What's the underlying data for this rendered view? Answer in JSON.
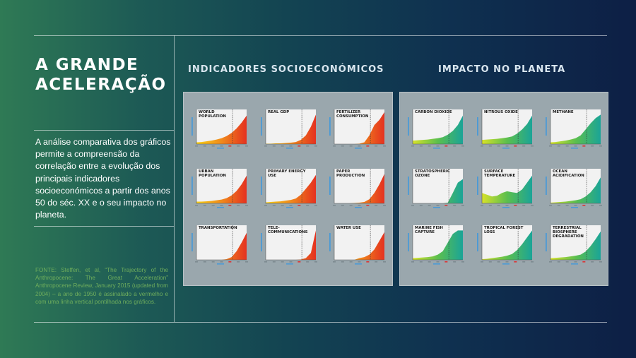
{
  "title": "A GRANDE ACELERAÇÃO",
  "description": "A análise comparativa dos gráficos permite a compreensão da correlação entre a evolução dos principais indicadores socioeconómicos a partir dos anos 50 do séc. XX e o seu impacto no planeta.",
  "source": "FONTE: Steffen, et al, “The Trajectory of the Anthropocene: The Great Acceleration” Anthropocene Review, January 2015 (updated from 2004) – a ano de 1950 é assinalado a vermelho e com uma linha vertical pontilhada nos gráficos.",
  "sections": {
    "socio": "INDICADORES SOCIOECONÓMICOS",
    "planet": "IMPACTO NO PLANETA"
  },
  "colors": {
    "socio_gradient": [
      "#f7d117",
      "#f08a1c",
      "#e5311f"
    ],
    "planet_gradient": [
      "#d7e22a",
      "#5cbf4e",
      "#1aa497"
    ]
  },
  "socio_charts": [
    {
      "label": "WORLD POPULATION",
      "trend": [
        0.05,
        0.06,
        0.08,
        0.1,
        0.13,
        0.17,
        0.23,
        0.32,
        0.45,
        0.62,
        0.82
      ]
    },
    {
      "label": "REAL GDP",
      "trend": [
        0.01,
        0.01,
        0.02,
        0.02,
        0.03,
        0.04,
        0.06,
        0.12,
        0.25,
        0.5,
        0.85
      ]
    },
    {
      "label": "FERTILIZER CONSUMPTION",
      "trend": [
        0,
        0,
        0,
        0,
        0,
        0.01,
        0.05,
        0.25,
        0.55,
        0.7,
        0.92
      ]
    },
    {
      "label": "URBAN POPULATION",
      "trend": [
        0.05,
        0.05,
        0.06,
        0.07,
        0.09,
        0.11,
        0.15,
        0.23,
        0.36,
        0.55,
        0.8
      ]
    },
    {
      "label": "PRIMARY ENERGY USE",
      "trend": [
        0.03,
        0.04,
        0.05,
        0.06,
        0.08,
        0.1,
        0.14,
        0.25,
        0.42,
        0.6,
        0.82
      ]
    },
    {
      "label": "PAPER PRODUCTION",
      "trend": [
        0,
        0,
        0,
        0,
        0.01,
        0.02,
        0.04,
        0.12,
        0.3,
        0.55,
        0.85
      ]
    },
    {
      "label": "TRANSPORTATION",
      "trend": [
        0,
        0,
        0,
        0,
        0,
        0,
        0.02,
        0.08,
        0.25,
        0.5,
        0.78
      ]
    },
    {
      "label": "TELE-COMMUNICATIONS",
      "trend": [
        0,
        0,
        0,
        0,
        0,
        0,
        0,
        0.01,
        0.05,
        0.2,
        0.85
      ]
    },
    {
      "label": "WATER USE",
      "trend": [
        0,
        0,
        0,
        0,
        0,
        0.05,
        0.08,
        0.15,
        0.3,
        0.55,
        0.8
      ]
    }
  ],
  "planet_charts": [
    {
      "label": "CARBON DIOXIDE",
      "trend": [
        0.1,
        0.11,
        0.12,
        0.13,
        0.15,
        0.17,
        0.2,
        0.27,
        0.38,
        0.55,
        0.82
      ]
    },
    {
      "label": "NITROUS OXIDE",
      "trend": [
        0.12,
        0.13,
        0.14,
        0.15,
        0.17,
        0.19,
        0.22,
        0.3,
        0.42,
        0.58,
        0.82
      ]
    },
    {
      "label": "METHANE",
      "trend": [
        0.05,
        0.06,
        0.08,
        0.1,
        0.13,
        0.17,
        0.25,
        0.42,
        0.6,
        0.75,
        0.85
      ]
    },
    {
      "label": "STRATOSPHERIC OZONE",
      "trend": [
        0,
        0,
        0,
        0,
        0,
        0,
        0,
        0.02,
        0.3,
        0.6,
        0.7
      ]
    },
    {
      "label": "SURFACE TEMPERATURE",
      "trend": [
        0.3,
        0.25,
        0.2,
        0.22,
        0.3,
        0.35,
        0.32,
        0.3,
        0.4,
        0.6,
        0.8
      ]
    },
    {
      "label": "OCEAN ACIDIFICATION",
      "trend": [
        0.02,
        0.03,
        0.04,
        0.05,
        0.07,
        0.09,
        0.12,
        0.2,
        0.32,
        0.5,
        0.75
      ]
    },
    {
      "label": "MARINE FISH CAPTURE",
      "trend": [
        0.05,
        0.06,
        0.07,
        0.08,
        0.1,
        0.15,
        0.25,
        0.5,
        0.75,
        0.85,
        0.85
      ]
    },
    {
      "label": "TROPICAL FOREST LOSS",
      "trend": [
        0.02,
        0.03,
        0.05,
        0.07,
        0.09,
        0.12,
        0.17,
        0.28,
        0.45,
        0.65,
        0.85
      ]
    },
    {
      "label": "TERRESTRIAL BIOSPHERE DEGRADATION",
      "trend": [
        0.05,
        0.06,
        0.07,
        0.08,
        0.1,
        0.12,
        0.15,
        0.24,
        0.4,
        0.6,
        0.82
      ]
    }
  ]
}
